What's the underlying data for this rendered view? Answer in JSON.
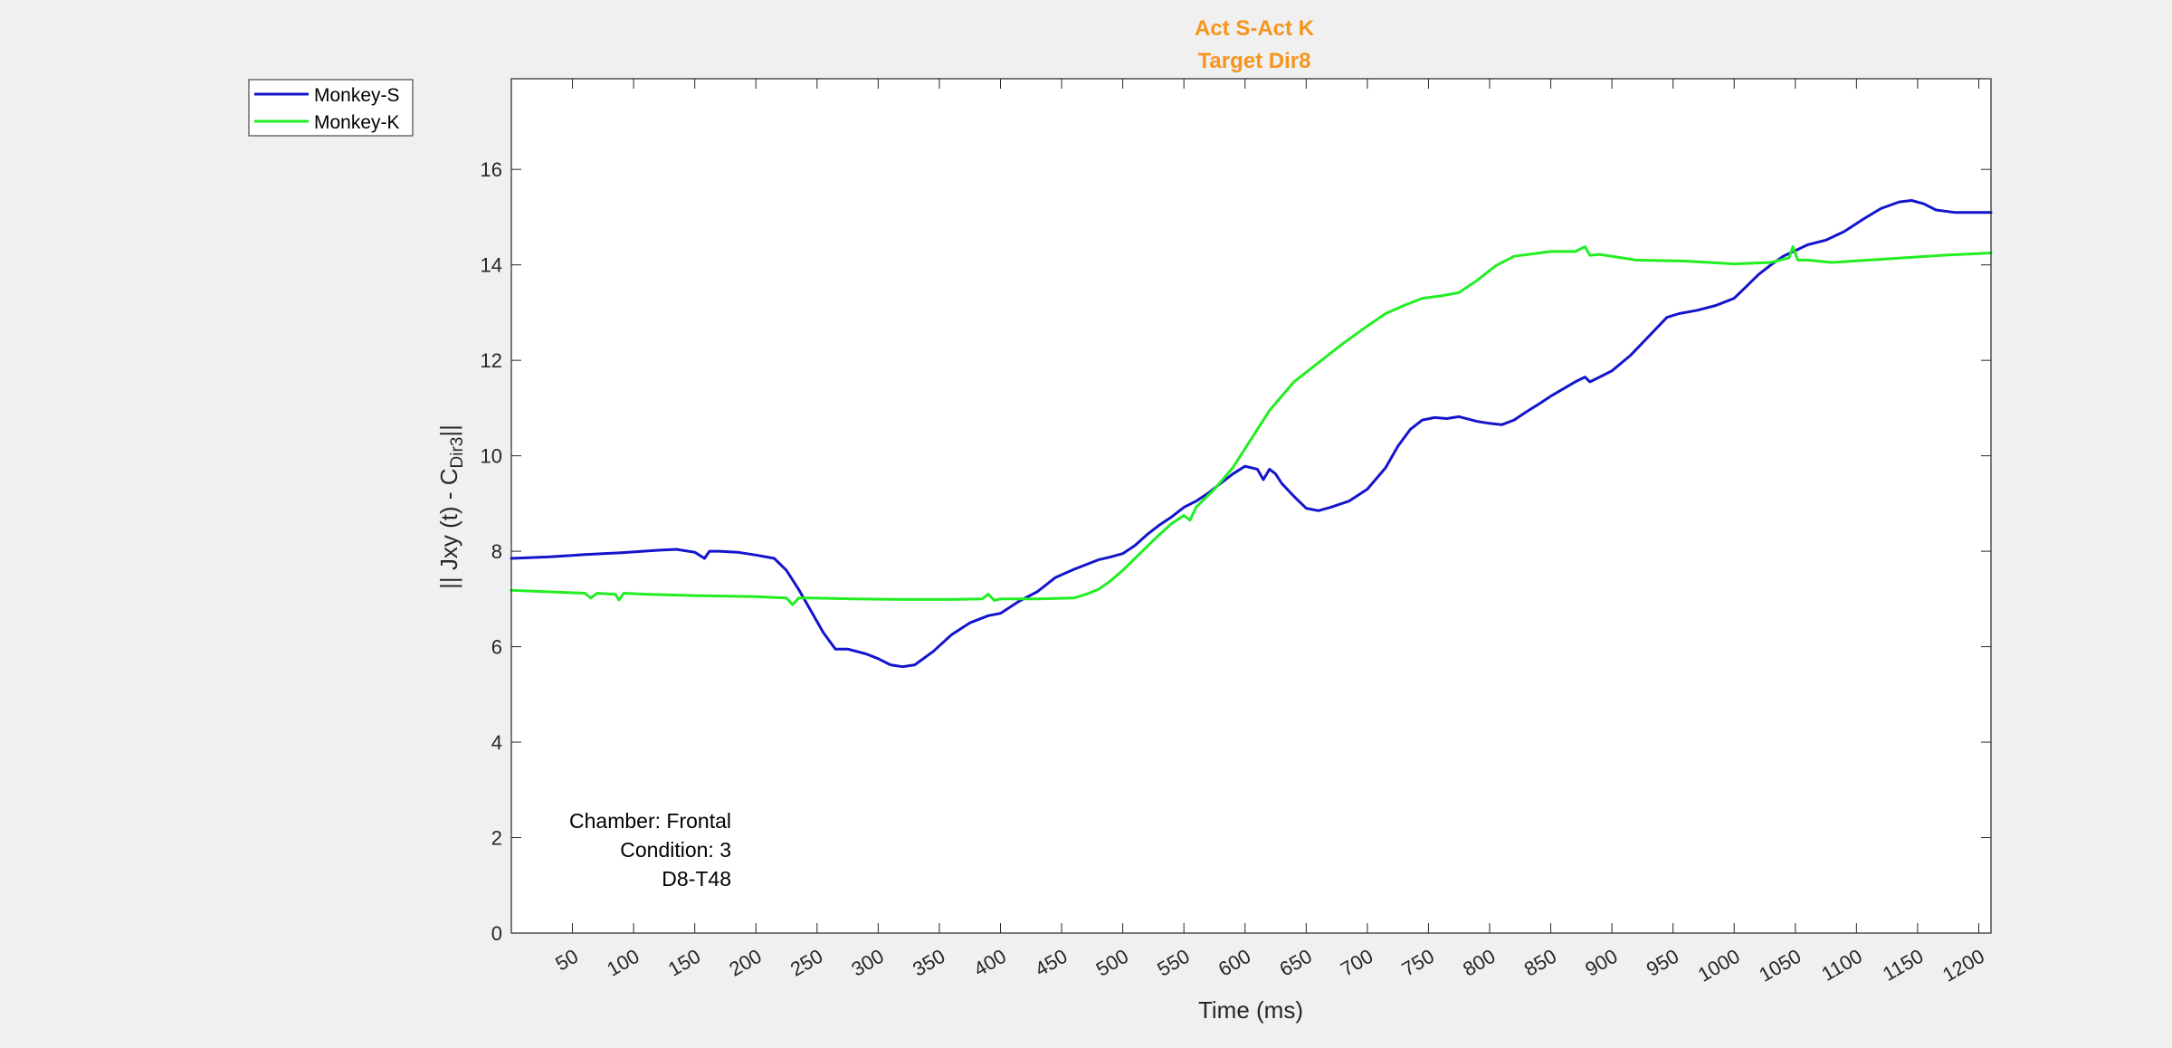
{
  "chart_data": {
    "type": "line",
    "title": [
      "Act S-Act K",
      "Target Dir8"
    ],
    "title_color": "#f7941d",
    "xlabel": "Time (ms)",
    "ylabel": {
      "main": "|| Jxy (t) - C",
      "subscript": "Dir3",
      "suffix": "||"
    },
    "xlim": [
      0,
      1210
    ],
    "ylim": [
      0,
      17.9
    ],
    "xticks": [
      50,
      100,
      150,
      200,
      250,
      300,
      350,
      400,
      450,
      500,
      550,
      600,
      650,
      700,
      750,
      800,
      850,
      900,
      950,
      1000,
      1050,
      1100,
      1150,
      1200
    ],
    "yticks": [
      0,
      2,
      4,
      6,
      8,
      10,
      12,
      14,
      16
    ],
    "grid": false,
    "legend_position": "top-left-outside",
    "annotations": [
      "Chamber: Frontal",
      "Condition: 3",
      "D8-T48"
    ],
    "series": [
      {
        "name": "Monkey-S",
        "color": "#1414cc",
        "x": [
          0,
          30,
          60,
          90,
          120,
          135,
          150,
          158,
          162,
          170,
          185,
          200,
          215,
          225,
          235,
          245,
          255,
          265,
          275,
          290,
          300,
          310,
          320,
          330,
          345,
          360,
          375,
          390,
          400,
          415,
          430,
          445,
          460,
          470,
          480,
          490,
          500,
          510,
          520,
          530,
          540,
          550,
          560,
          570,
          580,
          590,
          600,
          610,
          615,
          620,
          625,
          630,
          640,
          650,
          660,
          670,
          685,
          700,
          715,
          725,
          735,
          745,
          755,
          765,
          775,
          790,
          800,
          810,
          820,
          830,
          840,
          850,
          860,
          870,
          878,
          882,
          890,
          900,
          915,
          930,
          945,
          955,
          970,
          985,
          1000,
          1010,
          1020,
          1030,
          1040,
          1050,
          1060,
          1075,
          1090,
          1105,
          1120,
          1135,
          1145,
          1155,
          1165,
          1180,
          1195,
          1210
        ],
        "values": [
          7.85,
          7.88,
          7.93,
          7.97,
          8.02,
          8.04,
          7.98,
          7.85,
          8.0,
          8.0,
          7.98,
          7.92,
          7.85,
          7.6,
          7.2,
          6.75,
          6.3,
          5.95,
          5.95,
          5.85,
          5.75,
          5.62,
          5.58,
          5.62,
          5.9,
          6.25,
          6.5,
          6.65,
          6.7,
          6.95,
          7.15,
          7.45,
          7.62,
          7.72,
          7.82,
          7.88,
          7.95,
          8.12,
          8.35,
          8.55,
          8.72,
          8.92,
          9.05,
          9.22,
          9.42,
          9.62,
          9.78,
          9.72,
          9.5,
          9.72,
          9.62,
          9.42,
          9.15,
          8.9,
          8.85,
          8.92,
          9.05,
          9.3,
          9.75,
          10.2,
          10.55,
          10.75,
          10.8,
          10.78,
          10.82,
          10.72,
          10.68,
          10.65,
          10.75,
          10.92,
          11.08,
          11.25,
          11.4,
          11.55,
          11.65,
          11.55,
          11.65,
          11.78,
          12.1,
          12.5,
          12.9,
          12.98,
          13.05,
          13.15,
          13.3,
          13.55,
          13.8,
          14.0,
          14.18,
          14.3,
          14.42,
          14.52,
          14.7,
          14.95,
          15.18,
          15.32,
          15.35,
          15.28,
          15.15,
          15.1,
          15.1,
          15.1
        ]
      },
      {
        "name": "Monkey-K",
        "color": "#22ee22",
        "x": [
          0,
          30,
          60,
          65,
          70,
          85,
          88,
          92,
          110,
          150,
          200,
          225,
          230,
          235,
          245,
          280,
          320,
          360,
          385,
          390,
          395,
          400,
          430,
          460,
          470,
          480,
          490,
          500,
          510,
          520,
          530,
          540,
          550,
          555,
          560,
          565,
          575,
          590,
          605,
          620,
          640,
          660,
          680,
          700,
          715,
          730,
          745,
          760,
          775,
          790,
          805,
          820,
          850,
          870,
          878,
          882,
          890,
          920,
          960,
          1000,
          1030,
          1045,
          1048,
          1052,
          1060,
          1080,
          1110,
          1140,
          1170,
          1210
        ],
        "values": [
          7.18,
          7.15,
          7.12,
          7.02,
          7.12,
          7.1,
          6.98,
          7.12,
          7.1,
          7.07,
          7.05,
          7.02,
          6.88,
          7.02,
          7.02,
          7.0,
          6.99,
          6.99,
          7.0,
          7.1,
          6.97,
          7.0,
          7.0,
          7.02,
          7.1,
          7.2,
          7.38,
          7.6,
          7.85,
          8.1,
          8.35,
          8.58,
          8.75,
          8.65,
          8.92,
          9.05,
          9.3,
          9.75,
          10.35,
          10.95,
          11.55,
          11.95,
          12.35,
          12.72,
          12.98,
          13.15,
          13.3,
          13.35,
          13.42,
          13.68,
          13.98,
          14.18,
          14.28,
          14.28,
          14.38,
          14.2,
          14.22,
          14.1,
          14.08,
          14.02,
          14.05,
          14.15,
          14.38,
          14.1,
          14.1,
          14.05,
          14.1,
          14.15,
          14.2,
          14.25
        ]
      }
    ]
  }
}
